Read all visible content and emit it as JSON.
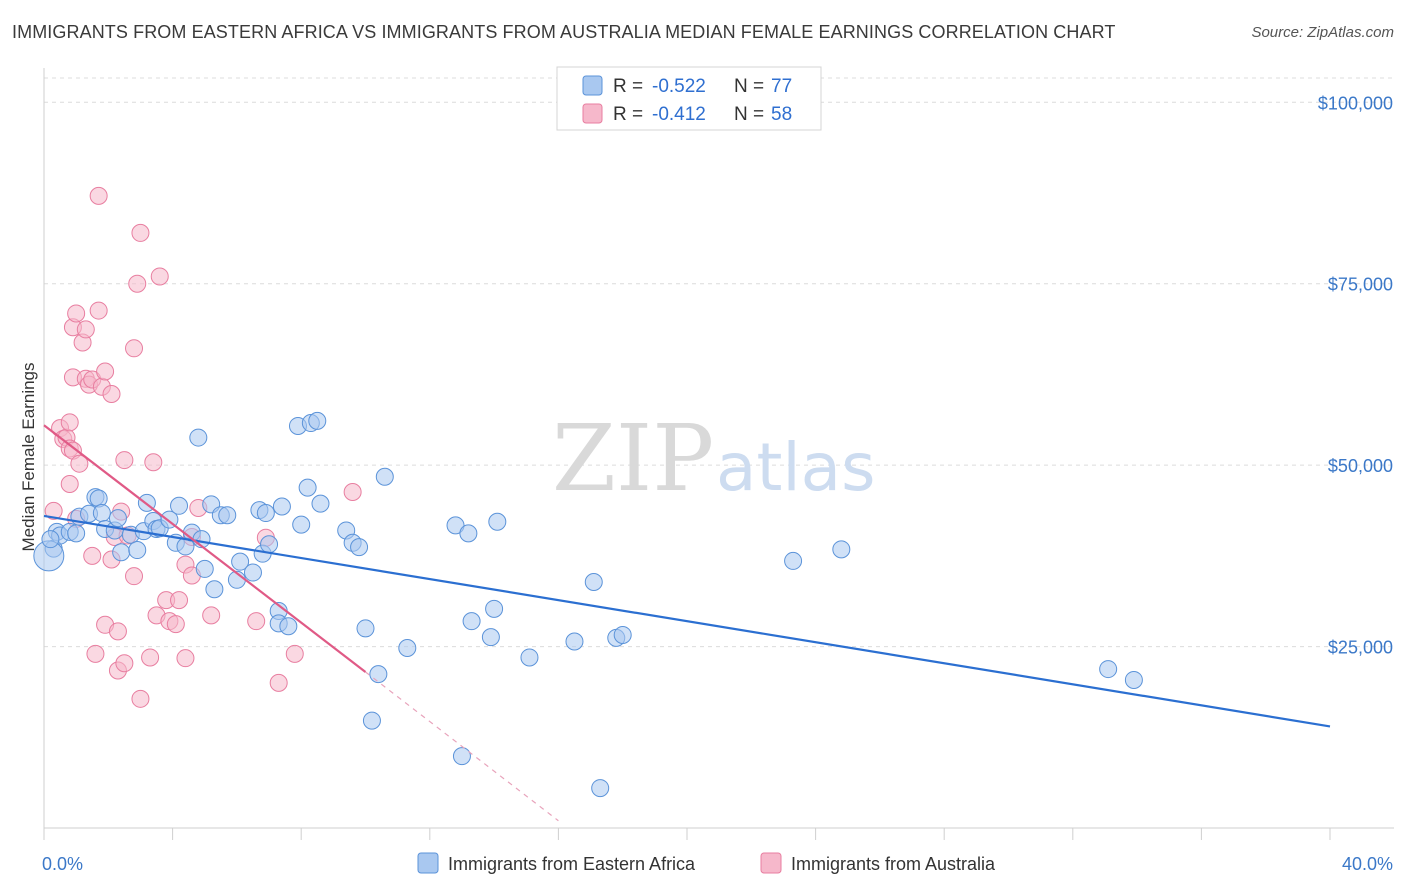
{
  "header": {
    "title": "IMMIGRANTS FROM EASTERN AFRICA VS IMMIGRANTS FROM AUSTRALIA MEDIAN FEMALE EARNINGS CORRELATION CHART",
    "source": "Source: ZipAtlas.com"
  },
  "watermark": {
    "part1": "ZIP",
    "part2": "atlas"
  },
  "legend": {
    "rows": [
      {
        "r_label": "R = ",
        "r_value": "-0.522",
        "n_label": "N = ",
        "n_value": "77"
      },
      {
        "r_label": "R = ",
        "r_value": "-0.412",
        "n_label": "N = ",
        "n_value": "58"
      }
    ]
  },
  "colors": {
    "blue_fill": "#a9c8f0",
    "blue_stroke": "#5b93d9",
    "blue_line": "#2b6fd1",
    "pink_fill": "#f6b8cb",
    "pink_stroke": "#e87ea0",
    "pink_line": "#e05a86",
    "tick_label": "#3b78c8",
    "grid": "#dcdcdc"
  },
  "chart_data": {
    "type": "scatter",
    "xlabel": "",
    "ylabel": "Median Female Earnings",
    "xlim": [
      0,
      40
    ],
    "ylim": [
      0,
      105000
    ],
    "x_tick_labels": [
      {
        "value": 0,
        "label": "0.0%"
      },
      {
        "value": 40,
        "label": "40.0%"
      }
    ],
    "y_tick_labels": [
      {
        "value": 25000,
        "label": "$25,000"
      },
      {
        "value": 50000,
        "label": "$50,000"
      },
      {
        "value": 75000,
        "label": "$75,000"
      },
      {
        "value": 100000,
        "label": "$100,000"
      }
    ],
    "y_gridlines": [
      25000,
      50000,
      75000,
      100000
    ],
    "series": [
      {
        "name": "Immigrants from Eastern Africa",
        "color": "#5b93d9",
        "trend": {
          "x": [
            0,
            40
          ],
          "y": [
            43000,
            14000
          ]
        },
        "points": [
          [
            0.3,
            38500
          ],
          [
            0.4,
            40800
          ],
          [
            0.5,
            40300
          ],
          [
            0.8,
            40800
          ],
          [
            1.0,
            40600
          ],
          [
            1.1,
            42900
          ],
          [
            1.4,
            43300
          ],
          [
            1.6,
            45600
          ],
          [
            1.7,
            45400
          ],
          [
            1.8,
            43400
          ],
          [
            1.9,
            41200
          ],
          [
            2.2,
            41000
          ],
          [
            2.3,
            42700
          ],
          [
            2.4,
            38000
          ],
          [
            2.7,
            40400
          ],
          [
            2.9,
            38300
          ],
          [
            3.1,
            40900
          ],
          [
            3.2,
            44800
          ],
          [
            3.4,
            42300
          ],
          [
            3.5,
            41200
          ],
          [
            3.6,
            41300
          ],
          [
            3.9,
            42500
          ],
          [
            4.1,
            39300
          ],
          [
            4.2,
            44400
          ],
          [
            4.4,
            38800
          ],
          [
            4.6,
            40700
          ],
          [
            4.8,
            53800
          ],
          [
            4.9,
            39800
          ],
          [
            5.0,
            35700
          ],
          [
            5.3,
            32900
          ],
          [
            5.2,
            44600
          ],
          [
            5.5,
            43100
          ],
          [
            5.7,
            43100
          ],
          [
            6.0,
            34200
          ],
          [
            6.1,
            36700
          ],
          [
            6.5,
            35200
          ],
          [
            6.7,
            43800
          ],
          [
            6.8,
            37800
          ],
          [
            6.9,
            43400
          ],
          [
            7.0,
            39100
          ],
          [
            7.3,
            29900
          ],
          [
            7.3,
            28200
          ],
          [
            7.4,
            44300
          ],
          [
            7.6,
            27800
          ],
          [
            7.9,
            55400
          ],
          [
            8.0,
            41800
          ],
          [
            8.2,
            46900
          ],
          [
            8.3,
            55800
          ],
          [
            8.5,
            56100
          ],
          [
            8.6,
            44700
          ],
          [
            9.4,
            41000
          ],
          [
            9.6,
            39300
          ],
          [
            9.8,
            38700
          ],
          [
            10.0,
            27500
          ],
          [
            10.6,
            48400
          ],
          [
            10.4,
            21200
          ],
          [
            10.2,
            14800
          ],
          [
            11.3,
            24800
          ],
          [
            12.8,
            41700
          ],
          [
            13.2,
            40600
          ],
          [
            13.3,
            28500
          ],
          [
            14.1,
            42200
          ],
          [
            14.0,
            30200
          ],
          [
            13.9,
            26300
          ],
          [
            13.0,
            9900
          ],
          [
            15.1,
            23500
          ],
          [
            16.5,
            25700
          ],
          [
            17.1,
            33900
          ],
          [
            17.8,
            26200
          ],
          [
            18.0,
            26600
          ],
          [
            17.3,
            5500
          ],
          [
            23.3,
            36800
          ],
          [
            24.8,
            38400
          ],
          [
            33.1,
            21900
          ],
          [
            33.9,
            20400
          ],
          [
            0.15,
            37500
          ],
          [
            0.2,
            39800
          ]
        ]
      },
      {
        "name": "Immigrants from Australia",
        "color": "#e87ea0",
        "trend": {
          "x": [
            0,
            10
          ],
          "y": [
            55500,
            21500
          ]
        },
        "trend_dashed": {
          "x": [
            10,
            16
          ],
          "y": [
            21500,
            1000
          ]
        },
        "points": [
          [
            0.3,
            43700
          ],
          [
            0.5,
            55100
          ],
          [
            0.6,
            53600
          ],
          [
            0.7,
            53800
          ],
          [
            0.8,
            55900
          ],
          [
            0.8,
            47400
          ],
          [
            0.8,
            52300
          ],
          [
            0.9,
            52000
          ],
          [
            0.9,
            69000
          ],
          [
            0.9,
            62100
          ],
          [
            1.0,
            70900
          ],
          [
            1.0,
            42600
          ],
          [
            1.1,
            50200
          ],
          [
            1.2,
            66900
          ],
          [
            1.3,
            61900
          ],
          [
            1.3,
            68700
          ],
          [
            1.4,
            61100
          ],
          [
            1.5,
            37500
          ],
          [
            1.5,
            61800
          ],
          [
            1.6,
            24000
          ],
          [
            1.7,
            87100
          ],
          [
            1.7,
            71300
          ],
          [
            1.8,
            60800
          ],
          [
            1.9,
            62900
          ],
          [
            1.9,
            28000
          ],
          [
            2.1,
            59800
          ],
          [
            2.1,
            37000
          ],
          [
            2.2,
            40100
          ],
          [
            2.3,
            27100
          ],
          [
            2.3,
            21700
          ],
          [
            2.4,
            43600
          ],
          [
            2.5,
            50700
          ],
          [
            2.5,
            22700
          ],
          [
            2.6,
            40300
          ],
          [
            2.8,
            34700
          ],
          [
            2.8,
            66100
          ],
          [
            2.9,
            75000
          ],
          [
            3.0,
            82000
          ],
          [
            3.0,
            17800
          ],
          [
            3.3,
            23500
          ],
          [
            3.4,
            50400
          ],
          [
            3.5,
            29300
          ],
          [
            3.6,
            76000
          ],
          [
            3.8,
            31400
          ],
          [
            3.9,
            28500
          ],
          [
            4.1,
            28100
          ],
          [
            4.2,
            31400
          ],
          [
            4.4,
            23400
          ],
          [
            4.4,
            36300
          ],
          [
            4.6,
            40100
          ],
          [
            4.6,
            34800
          ],
          [
            4.8,
            44100
          ],
          [
            5.2,
            29300
          ],
          [
            6.6,
            28500
          ],
          [
            6.9,
            40000
          ],
          [
            7.3,
            20000
          ],
          [
            7.8,
            24000
          ],
          [
            9.6,
            46300
          ]
        ]
      }
    ]
  },
  "bottom_legend": {
    "items": [
      {
        "label": "Immigrants from Eastern Africa"
      },
      {
        "label": "Immigrants from Australia"
      }
    ]
  }
}
